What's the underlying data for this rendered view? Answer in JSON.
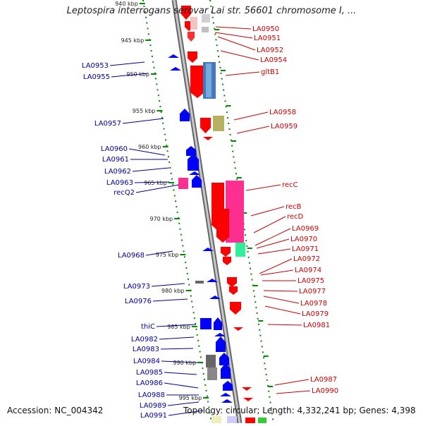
{
  "title": "Leptospira interrogans serovar Lai str. 56601 chromosome I, ...",
  "footer": {
    "accession": "Accession: NC_004342",
    "stats": "Topology: circular; Length: 4,332,241 bp; Genes: 4,398"
  },
  "colors": {
    "forward_gene": "#ff0000",
    "reverse_gene": "#0000ff",
    "left_label": "#000099",
    "right_label": "#cc0000",
    "tick": "#008800",
    "backbone": "#8c8c8c"
  },
  "ticks": [
    {
      "label": "940 kbp"
    },
    {
      "label": "945 kbp"
    },
    {
      "label": "950 kbp"
    },
    {
      "label": "955 kbp"
    },
    {
      "label": "960 kbp"
    },
    {
      "label": "965 kbp"
    },
    {
      "label": "970 kbp"
    },
    {
      "label": "975 kbp"
    },
    {
      "label": "980 kbp"
    },
    {
      "label": "985 kbp"
    },
    {
      "label": "990 kbp"
    },
    {
      "label": "995 kbp"
    }
  ],
  "left_labels": [
    "LA0953",
    "LA0955",
    "LA0957",
    "LA0960",
    "LA0961",
    "LA0962",
    "LA0963",
    "recQ2",
    "LA0968",
    "LA0973",
    "LA0976",
    "thiC",
    "LA0982",
    "LA0983",
    "LA0984",
    "LA0985",
    "LA0986",
    "LA0988",
    "LA0989",
    "LA0991"
  ],
  "right_labels": [
    "LA0950",
    "LA0951",
    "LA0952",
    "LA0954",
    "gltB1",
    "LA0958",
    "LA0959",
    "recC",
    "recB",
    "recD",
    "LA0969",
    "LA0970",
    "LA0971",
    "LA0972",
    "LA0974",
    "LA0975",
    "LA0977",
    "LA0978",
    "LA0979",
    "LA0981",
    "LA0987",
    "LA0990"
  ]
}
